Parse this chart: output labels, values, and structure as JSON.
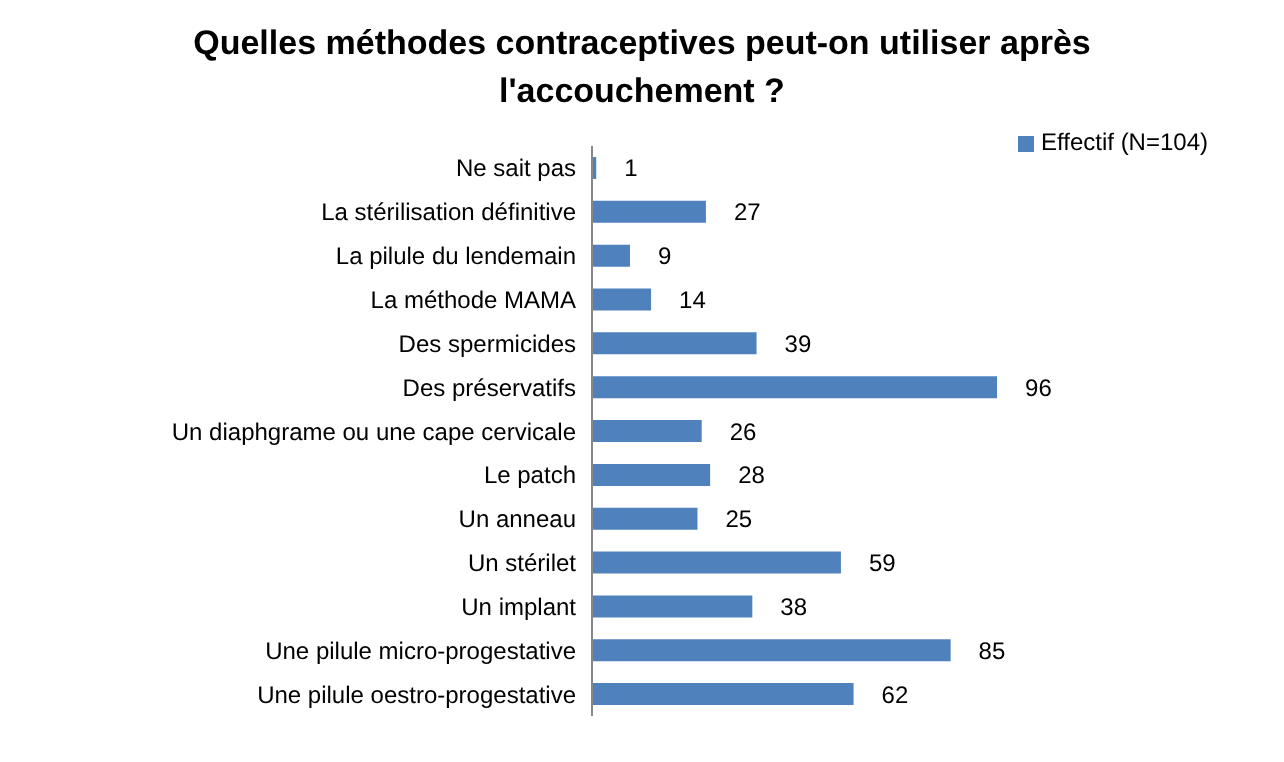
{
  "chart_data": {
    "type": "bar",
    "orientation": "horizontal",
    "title": "Quelles méthodes contraceptives peut-on utiliser après l'accouchement ?",
    "categories": [
      "Ne sait pas",
      "La stérilisation définitive",
      "La pilule du lendemain",
      "La méthode MAMA",
      "Des spermicides",
      "Des préservatifs",
      "Un diaphgrame ou une cape cervicale",
      "Le patch",
      "Un anneau",
      "Un stérilet",
      "Un implant",
      "Une pilule micro-progestative",
      "Une pilule oestro-progestative"
    ],
    "series": [
      {
        "name": "Effectif (N=104)",
        "color": "#4f81bd",
        "values": [
          1,
          27,
          9,
          14,
          39,
          96,
          26,
          28,
          25,
          59,
          38,
          85,
          62
        ]
      }
    ],
    "data_labels": true,
    "legend": "top right",
    "grid": false,
    "tick_labels": "y"
  }
}
